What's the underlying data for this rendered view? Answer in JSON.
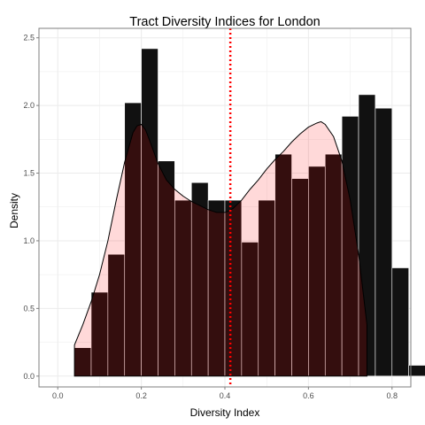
{
  "chart_data": {
    "type": "bar",
    "title": "Tract Diversity Indices for London",
    "xlabel": "Diversity Index",
    "ylabel": "Density",
    "xlim": [
      -0.045,
      0.845
    ],
    "ylim": [
      -0.08,
      2.57
    ],
    "grid": true,
    "bin_width": 0.04,
    "bins": [
      {
        "x": 0.06,
        "density": 0.21
      },
      {
        "x": 0.1,
        "density": 0.62
      },
      {
        "x": 0.14,
        "density": 0.9
      },
      {
        "x": 0.18,
        "density": 2.02
      },
      {
        "x": 0.22,
        "density": 2.42
      },
      {
        "x": 0.26,
        "density": 1.59
      },
      {
        "x": 0.3,
        "density": 1.3
      },
      {
        "x": 0.34,
        "density": 1.43
      },
      {
        "x": 0.38,
        "density": 1.3
      },
      {
        "x": 0.42,
        "density": 1.3
      },
      {
        "x": 0.46,
        "density": 0.99
      },
      {
        "x": 0.5,
        "density": 1.3
      },
      {
        "x": 0.54,
        "density": 1.64
      },
      {
        "x": 0.58,
        "density": 1.46
      },
      {
        "x": 0.62,
        "density": 1.55
      },
      {
        "x": 0.66,
        "density": 1.64
      },
      {
        "x": 0.7,
        "density": 1.92
      },
      {
        "x": 0.74,
        "density": 2.08
      },
      {
        "x": 0.78,
        "density": 1.98
      },
      {
        "x": 0.82,
        "density": 0.8
      },
      {
        "x": 0.86,
        "density": 0.08
      }
    ],
    "density_curve": {
      "x": [
        0.04,
        0.06,
        0.08,
        0.1,
        0.12,
        0.14,
        0.16,
        0.18,
        0.19,
        0.2,
        0.21,
        0.22,
        0.24,
        0.26,
        0.28,
        0.3,
        0.32,
        0.34,
        0.36,
        0.38,
        0.4,
        0.41,
        0.42,
        0.44,
        0.46,
        0.48,
        0.5,
        0.52,
        0.54,
        0.56,
        0.58,
        0.6,
        0.62,
        0.63,
        0.64,
        0.66,
        0.68,
        0.7,
        0.72,
        0.74
      ],
      "y": [
        0.23,
        0.38,
        0.55,
        0.75,
        1.0,
        1.3,
        1.58,
        1.8,
        1.85,
        1.86,
        1.82,
        1.74,
        1.57,
        1.45,
        1.38,
        1.33,
        1.29,
        1.26,
        1.23,
        1.21,
        1.21,
        1.22,
        1.24,
        1.3,
        1.38,
        1.45,
        1.53,
        1.6,
        1.66,
        1.73,
        1.79,
        1.84,
        1.87,
        1.88,
        1.86,
        1.77,
        1.59,
        1.3,
        0.9,
        0.38
      ]
    },
    "mean_line": {
      "x": 0.413,
      "color": "#ff0000"
    },
    "x_ticks": [
      {
        "value": 0.0,
        "label": "0.0"
      },
      {
        "value": 0.2,
        "label": "0.2"
      },
      {
        "value": 0.4,
        "label": "0.4"
      },
      {
        "value": 0.6,
        "label": "0.6"
      },
      {
        "value": 0.8,
        "label": "0.8"
      }
    ],
    "y_ticks": [
      {
        "value": 0.0,
        "label": "0.0"
      },
      {
        "value": 0.5,
        "label": "0.5"
      },
      {
        "value": 1.0,
        "label": "1.0"
      },
      {
        "value": 1.5,
        "label": "1.5"
      },
      {
        "value": 2.0,
        "label": "2.0"
      },
      {
        "value": 2.5,
        "label": "2.5"
      }
    ],
    "colors": {
      "bar_fill": "#111111",
      "bar_stroke": "#ffffff",
      "density_fill": "#ff0000",
      "density_fill_opacity": 0.15,
      "density_stroke": "#000000",
      "grid": "#ebebeb",
      "panel_border": "#7f7f7f",
      "panel_bg": "#ffffff"
    }
  }
}
